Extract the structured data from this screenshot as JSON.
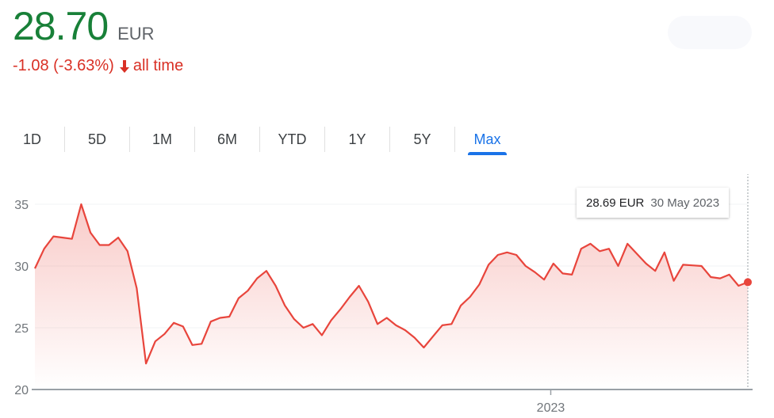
{
  "quote": {
    "price": "28.70",
    "currency": "EUR",
    "change": "-1.08 (-3.63%)",
    "direction_icon": "arrow-down-icon",
    "period": "all time"
  },
  "tabs": [
    {
      "label": "1D"
    },
    {
      "label": "5D"
    },
    {
      "label": "1M"
    },
    {
      "label": "6M"
    },
    {
      "label": "YTD"
    },
    {
      "label": "1Y"
    },
    {
      "label": "5Y"
    },
    {
      "label": "Max",
      "active": true
    }
  ],
  "tooltip": {
    "value": "28.69 EUR",
    "date": "30 May 2023"
  },
  "colors": {
    "price_up": "#188038",
    "negative": "#d93025",
    "accent": "#1a73e8",
    "line": "#e8453c"
  },
  "chart_data": {
    "type": "area",
    "ylim": [
      20,
      36
    ],
    "yticks": [
      20,
      25,
      30,
      35
    ],
    "xticks": [
      {
        "date": "2023-01-01",
        "label": "2023"
      }
    ],
    "grid": true,
    "series": [
      {
        "dates": [
          "2021-12-07",
          "2021-12-14",
          "2021-12-21",
          "2021-12-28",
          "2022-01-04",
          "2022-01-11",
          "2022-01-18",
          "2022-01-25",
          "2022-02-01",
          "2022-02-08",
          "2022-02-15",
          "2022-02-22",
          "2022-03-01",
          "2022-03-08",
          "2022-03-15",
          "2022-03-22",
          "2022-03-29",
          "2022-04-05",
          "2022-04-12",
          "2022-04-19",
          "2022-04-26",
          "2022-05-03",
          "2022-05-10",
          "2022-05-17",
          "2022-05-24",
          "2022-05-31",
          "2022-06-07",
          "2022-06-14",
          "2022-06-21",
          "2022-06-28",
          "2022-07-05",
          "2022-07-12",
          "2022-07-19",
          "2022-07-26",
          "2022-08-02",
          "2022-08-09",
          "2022-08-16",
          "2022-08-23",
          "2022-08-30",
          "2022-09-06",
          "2022-09-13",
          "2022-09-20",
          "2022-09-27",
          "2022-10-04",
          "2022-10-11",
          "2022-10-18",
          "2022-10-25",
          "2022-11-01",
          "2022-11-08",
          "2022-11-15",
          "2022-11-22",
          "2022-11-29",
          "2022-12-06",
          "2022-12-13",
          "2022-12-20",
          "2022-12-27",
          "2023-01-03",
          "2023-01-10",
          "2023-01-17",
          "2023-01-24",
          "2023-01-31",
          "2023-02-07",
          "2023-02-14",
          "2023-02-21",
          "2023-02-28",
          "2023-03-07",
          "2023-03-14",
          "2023-03-21",
          "2023-03-28",
          "2023-04-04",
          "2023-04-11",
          "2023-04-18",
          "2023-04-25",
          "2023-05-02",
          "2023-05-09",
          "2023-05-16",
          "2023-05-23",
          "2023-05-30"
        ],
        "values": [
          29.8,
          31.4,
          32.4,
          32.3,
          32.2,
          35.0,
          32.7,
          31.7,
          31.7,
          32.3,
          31.2,
          28.2,
          22.1,
          23.9,
          24.5,
          25.4,
          25.1,
          23.6,
          23.7,
          25.5,
          25.8,
          25.9,
          27.4,
          28.0,
          29.0,
          29.6,
          28.4,
          26.8,
          25.7,
          25.0,
          25.3,
          24.4,
          25.6,
          26.5,
          27.5,
          28.4,
          27.1,
          25.3,
          25.8,
          25.2,
          24.8,
          24.2,
          23.4,
          24.3,
          25.2,
          25.3,
          26.8,
          27.5,
          28.5,
          30.1,
          30.9,
          31.1,
          30.9,
          30.0,
          29.5,
          28.9,
          30.2,
          29.4,
          29.3,
          31.4,
          31.8,
          31.2,
          31.4,
          30.0,
          31.8,
          31.0,
          30.2,
          29.6,
          31.1,
          28.8,
          30.1,
          30.05,
          30.0,
          29.1,
          29.0,
          29.3,
          28.4,
          28.69
        ]
      }
    ]
  }
}
